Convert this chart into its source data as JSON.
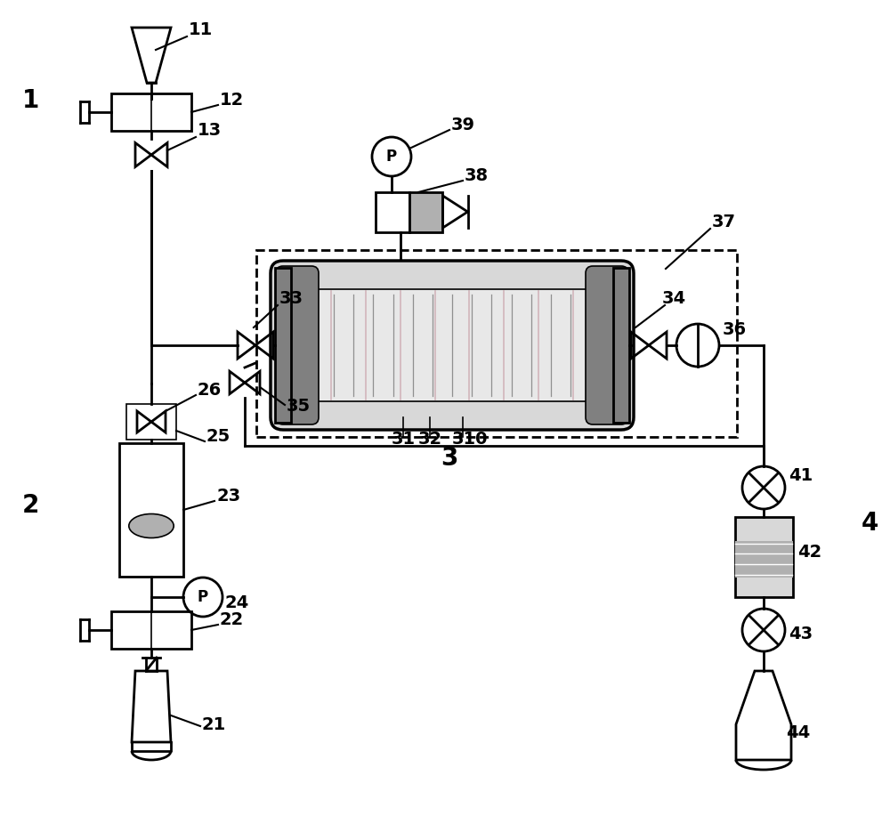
{
  "bg_color": "#ffffff",
  "lc": "#000000",
  "lw": 2.0,
  "lw_thin": 1.2,
  "label_fs": 14,
  "group_fs": 20,
  "colors": {
    "gray_dark": "#808080",
    "gray_mid": "#b0b0b0",
    "gray_light": "#d8d8d8",
    "gray_pale": "#e8e8e8",
    "pink": "#d4b8b8",
    "hatch_green": "#c0d0c0"
  },
  "layout": {
    "xlim": [
      0,
      10
    ],
    "ylim": [
      0,
      9.26
    ]
  }
}
